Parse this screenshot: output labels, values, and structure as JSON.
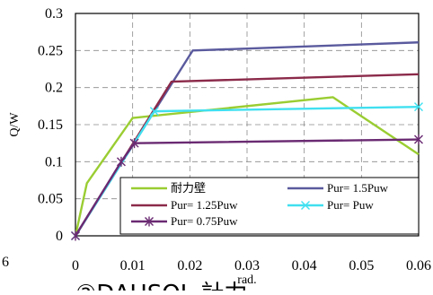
{
  "chart_data": {
    "type": "line",
    "xlabel": "rad.",
    "ylabel": "Q/W",
    "xlim": [
      0,
      0.06
    ],
    "ylim": [
      0,
      0.3
    ],
    "x_ticks": [
      "0",
      "0.01",
      "0.02",
      "0.03",
      "0.04",
      "0.05",
      "0.06"
    ],
    "y_ticks": [
      "0",
      "0.05",
      "0.1",
      "0.15",
      "0.2",
      "0.25",
      "0.3"
    ],
    "grid": true,
    "legend_position": "bottom-right",
    "series": [
      {
        "name": "耐力壁",
        "color": "#9acd32",
        "marker": "none",
        "points": [
          [
            0,
            0
          ],
          [
            0.002,
            0.071
          ],
          [
            0.01,
            0.159
          ],
          [
            0.045,
            0.187
          ],
          [
            0.06,
            0.11
          ]
        ]
      },
      {
        "name": "Pur= 1.5Puw",
        "color": "#5a5a9e",
        "marker": "none",
        "points": [
          [
            0,
            0
          ],
          [
            0.0205,
            0.25
          ],
          [
            0.06,
            0.261
          ]
        ]
      },
      {
        "name": "Pur= 1.25Puw",
        "color": "#8b2a4a",
        "marker": "none",
        "points": [
          [
            0,
            0
          ],
          [
            0.0168,
            0.208
          ],
          [
            0.06,
            0.218
          ]
        ]
      },
      {
        "name": "Pur= Puw",
        "color": "#40e0f0",
        "marker": "x",
        "points": [
          [
            0,
            0
          ],
          [
            0.0138,
            0.168
          ],
          [
            0.06,
            0.174
          ]
        ]
      },
      {
        "name": "Pur= 0.75Puw",
        "color": "#6a2a72",
        "marker": "asterisk",
        "points": [
          [
            0,
            0
          ],
          [
            0.008,
            0.1
          ],
          [
            0.0103,
            0.125
          ],
          [
            0.06,
            0.13
          ]
        ]
      }
    ]
  },
  "stray_text": "6",
  "caption_fragment": "②DAUSOL    計力"
}
